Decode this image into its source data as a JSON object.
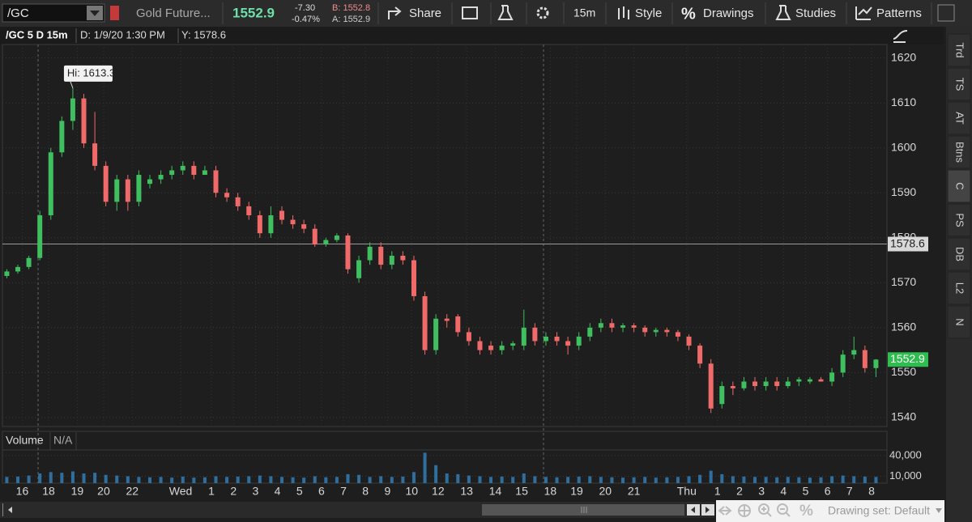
{
  "toolbar": {
    "symbol": "/GC",
    "description": "Gold Future...",
    "last": "1552.9",
    "change": "-7.30",
    "change_pct": "-0.47%",
    "bid": "B: 1552.8",
    "ask": "A: 1552.9",
    "share": "Share",
    "interval": "15m",
    "style": "Style",
    "percent": "%",
    "drawings": "Drawings",
    "studies": "Studies",
    "patterns": "Patterns"
  },
  "header": {
    "title": "/GC 5 D 15m",
    "date": "D: 1/9/20 1:30 PM",
    "y": "Y: 1578.6"
  },
  "sidebar_tabs": [
    "Trd",
    "TS",
    "AT",
    "Btns",
    "C",
    "PS",
    "DB",
    "L2",
    "N"
  ],
  "footer": {
    "drawing_set": "Drawing set: Default"
  },
  "chart_data": {
    "type": "candlestick",
    "x": [
      0,
      0.5,
      1,
      1.5,
      2,
      2.5,
      3,
      3.5,
      4,
      4.5,
      5,
      5.5,
      6,
      6.5,
      7,
      7.5,
      8,
      8.5,
      9,
      9.5,
      10,
      10.5,
      11,
      11.5,
      12,
      12.5,
      13,
      13.5,
      14,
      14.5,
      15,
      15.5,
      16,
      16.5,
      17,
      17.5,
      18,
      18.5,
      19,
      19.5,
      20,
      20.5,
      21,
      21.5,
      22,
      22.5,
      23,
      23.5,
      24,
      24.5,
      25,
      25.5,
      26,
      26.5,
      27,
      27.5,
      28,
      28.5,
      29,
      29.5,
      30,
      30.5,
      31,
      31.5,
      32,
      32.5,
      33,
      33.5,
      34,
      34.5,
      35,
      35.5,
      36,
      36.5,
      37,
      37.5,
      38,
      38.5,
      39,
      39.5
    ],
    "open": [
      1571.5,
      1572.5,
      1573.5,
      1575.5,
      1585,
      1599,
      1606,
      1611,
      1601,
      1596,
      1588,
      1593,
      1588,
      1592,
      1593,
      1594,
      1595,
      1596,
      1594,
      1595,
      1590,
      1589,
      1587,
      1585,
      1581,
      1586,
      1584,
      1583,
      1582,
      1578.5,
      1579.5,
      1580.5,
      1571,
      1575,
      1578,
      1574,
      1576,
      1575,
      1567,
      1555,
      1562,
      1562.5,
      1559,
      1557,
      1556,
      1555,
      1556,
      1556,
      1560,
      1557,
      1558,
      1557,
      1556,
      1558,
      1560,
      1561,
      1560,
      1560.5,
      1560,
      1559,
      1559.5,
      1559,
      1558,
      1556,
      1552,
      1543,
      1547,
      1546.5,
      1548,
      1547,
      1548,
      1547,
      1548,
      1548,
      1548.5,
      1548,
      1550,
      1554,
      1555,
      1551
    ],
    "high": [
      1573,
      1574,
      1576,
      1586,
      1600,
      1607,
      1613.3,
      1612,
      1608,
      1597,
      1594,
      1594,
      1595,
      1594,
      1595,
      1596,
      1597,
      1597,
      1596,
      1596,
      1591,
      1590,
      1588,
      1586,
      1587,
      1587,
      1585,
      1584,
      1583,
      1580,
      1581,
      1581,
      1576,
      1579,
      1579,
      1577,
      1577,
      1576,
      1568,
      1563,
      1563,
      1563,
      1560,
      1558,
      1557,
      1557,
      1557,
      1564,
      1561,
      1559,
      1559,
      1558,
      1559,
      1561,
      1562,
      1562,
      1561,
      1561,
      1560.5,
      1560,
      1560,
      1559.5,
      1558.5,
      1556.5,
      1553,
      1548,
      1548,
      1549,
      1549,
      1549,
      1549,
      1549,
      1549,
      1549,
      1549,
      1551,
      1555,
      1558,
      1556,
      1553
    ],
    "low": [
      1571,
      1572,
      1573,
      1575,
      1584,
      1598,
      1604,
      1600,
      1595,
      1587,
      1586,
      1586,
      1587,
      1591,
      1592,
      1593,
      1594,
      1593,
      1594,
      1589,
      1588,
      1586,
      1584,
      1580,
      1580,
      1583,
      1582,
      1581,
      1578,
      1578,
      1579,
      1572,
      1570,
      1574,
      1573,
      1573,
      1574,
      1566,
      1554,
      1554,
      1560,
      1558,
      1556,
      1554,
      1554,
      1554,
      1555,
      1555,
      1556,
      1556,
      1556,
      1554,
      1555,
      1557,
      1559,
      1559,
      1559,
      1559,
      1558,
      1558,
      1558,
      1557,
      1555,
      1551,
      1541,
      1542,
      1545,
      1546,
      1546,
      1546,
      1546,
      1546.5,
      1547,
      1547.5,
      1548,
      1547,
      1549,
      1553,
      1550,
      1549
    ],
    "close": [
      1572.5,
      1573.5,
      1575.5,
      1585,
      1599,
      1606,
      1611,
      1601,
      1596,
      1588,
      1593,
      1588,
      1594,
      1593,
      1594,
      1595,
      1596,
      1594,
      1595,
      1590,
      1589,
      1587,
      1585,
      1581,
      1585,
      1584,
      1583,
      1582,
      1578.5,
      1579.5,
      1580.5,
      1573,
      1575,
      1578,
      1574,
      1576,
      1575,
      1567,
      1555,
      1562,
      1561.5,
      1559,
      1557,
      1555,
      1555,
      1556,
      1556.5,
      1560,
      1557,
      1558,
      1557,
      1556,
      1558,
      1560,
      1561,
      1560,
      1560.5,
      1560,
      1559,
      1559.5,
      1559,
      1558,
      1556,
      1552,
      1542,
      1547,
      1546.5,
      1548,
      1547,
      1548,
      1547,
      1548,
      1548.5,
      1548.5,
      1548,
      1550,
      1554,
      1555,
      1551,
      1552.9
    ],
    "up_color": "#3fbf5f",
    "down_color": "#f06a6a",
    "ylim": [
      1538,
      1623
    ],
    "yticks": [
      1540,
      1550,
      1560,
      1570,
      1580,
      1590,
      1600,
      1610,
      1620
    ],
    "xlim": [
      -0.2,
      40
    ],
    "xticks": [
      {
        "value": 0.7,
        "label": "16"
      },
      {
        "value": 1.9,
        "label": "18"
      },
      {
        "value": 3.2,
        "label": "19"
      },
      {
        "value": 4.4,
        "label": "20"
      },
      {
        "value": 5.7,
        "label": "22"
      },
      {
        "value": 7.9,
        "label": "Wed"
      },
      {
        "value": 9.3,
        "label": "1"
      },
      {
        "value": 10.3,
        "label": "2"
      },
      {
        "value": 11.3,
        "label": "3"
      },
      {
        "value": 12.3,
        "label": "4"
      },
      {
        "value": 13.3,
        "label": "5"
      },
      {
        "value": 14.3,
        "label": "6"
      },
      {
        "value": 15.3,
        "label": "7"
      },
      {
        "value": 16.3,
        "label": "8"
      },
      {
        "value": 17.3,
        "label": "9"
      },
      {
        "value": 18.4,
        "label": "10"
      },
      {
        "value": 19.6,
        "label": "12"
      },
      {
        "value": 20.9,
        "label": "13"
      },
      {
        "value": 22.2,
        "label": "14"
      },
      {
        "value": 23.4,
        "label": "15"
      },
      {
        "value": 24.7,
        "label": "18"
      },
      {
        "value": 25.9,
        "label": "19"
      },
      {
        "value": 27.2,
        "label": "20"
      },
      {
        "value": 28.5,
        "label": "21"
      },
      {
        "value": 30.9,
        "label": "Thu"
      },
      {
        "value": 32.3,
        "label": "1"
      },
      {
        "value": 33.3,
        "label": "2"
      },
      {
        "value": 34.3,
        "label": "3"
      },
      {
        "value": 35.3,
        "label": "4"
      },
      {
        "value": 36.3,
        "label": "5"
      },
      {
        "value": 37.3,
        "label": "6"
      },
      {
        "value": 38.3,
        "label": "7"
      },
      {
        "value": 39.3,
        "label": "8"
      }
    ],
    "grid": true,
    "annotation": "Hi: 1613.3",
    "crosshair": 1578.6,
    "last_price": 1552.9,
    "volume": {
      "label": "Volume",
      "status": "N/A",
      "color": "#2f6f9f",
      "values": [
        9000,
        9500,
        11000,
        14000,
        16000,
        15000,
        17000,
        14000,
        15000,
        12000,
        11000,
        10000,
        9000,
        8500,
        9000,
        8000,
        9500,
        8000,
        8500,
        10000,
        9000,
        9500,
        10000,
        11000,
        10000,
        9000,
        8500,
        8000,
        10000,
        8500,
        9000,
        13000,
        12000,
        9000,
        10000,
        9000,
        9500,
        16000,
        44000,
        26000,
        14000,
        13000,
        11000,
        10000,
        9000,
        9500,
        9000,
        14000,
        10000,
        9000,
        8500,
        9000,
        9500,
        10000,
        9000,
        8500,
        8000,
        8500,
        9000,
        8000,
        8500,
        9000,
        10000,
        12000,
        18000,
        13000,
        10000,
        9500,
        9000,
        9000,
        8500,
        9000,
        8500,
        8000,
        8500,
        10000,
        11000,
        10000,
        9500,
        9000
      ],
      "ylim": [
        0,
        48000
      ],
      "yticks": [
        {
          "value": 10000,
          "label": "10,000"
        },
        {
          "value": 40000,
          "label": "40,000"
        }
      ]
    }
  }
}
